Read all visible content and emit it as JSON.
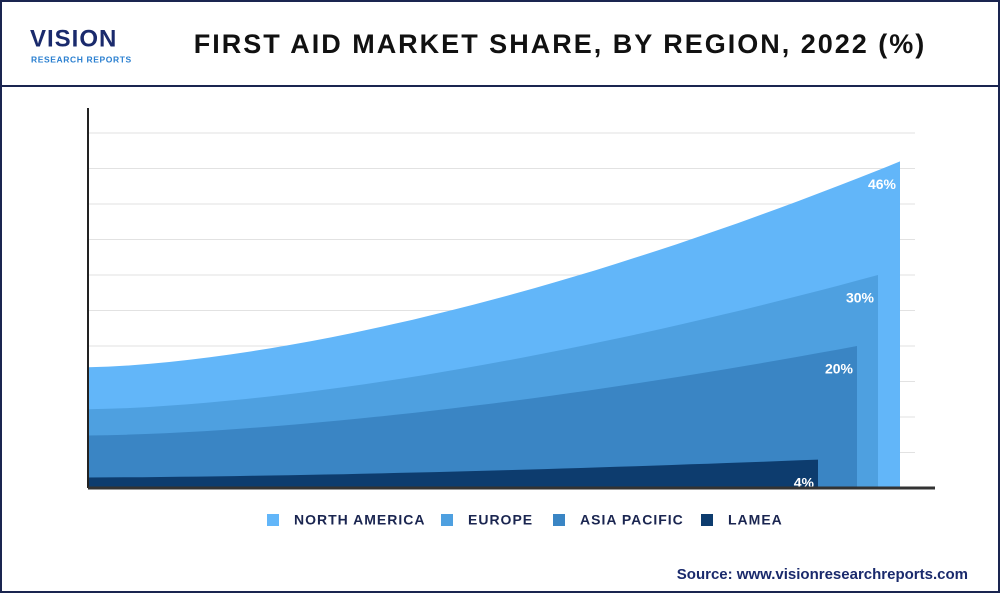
{
  "header": {
    "logo": "VISION",
    "logo_sub": "RESEARCH REPORTS"
  },
  "chart_data": {
    "type": "area",
    "title": "FIRST AID MARKET SHARE, BY REGION, 2022 (%)",
    "categories": [
      "NORTH AMERICA",
      "EUROPE",
      "ASIA PACIFIC",
      "LAMEA"
    ],
    "values": [
      46,
      30,
      20,
      4
    ],
    "value_labels": [
      "46%",
      "30%",
      "20%",
      "4%"
    ],
    "colors": [
      "#62b6f9",
      "#4ea0e0",
      "#3a85c4",
      "#0d3c6e"
    ],
    "ylim": [
      0,
      50
    ],
    "yticks": [
      0,
      5,
      10,
      15,
      20,
      25,
      30,
      35,
      40,
      45,
      50
    ],
    "grid": true
  },
  "source": "Source: www.visionresearchreports.com"
}
